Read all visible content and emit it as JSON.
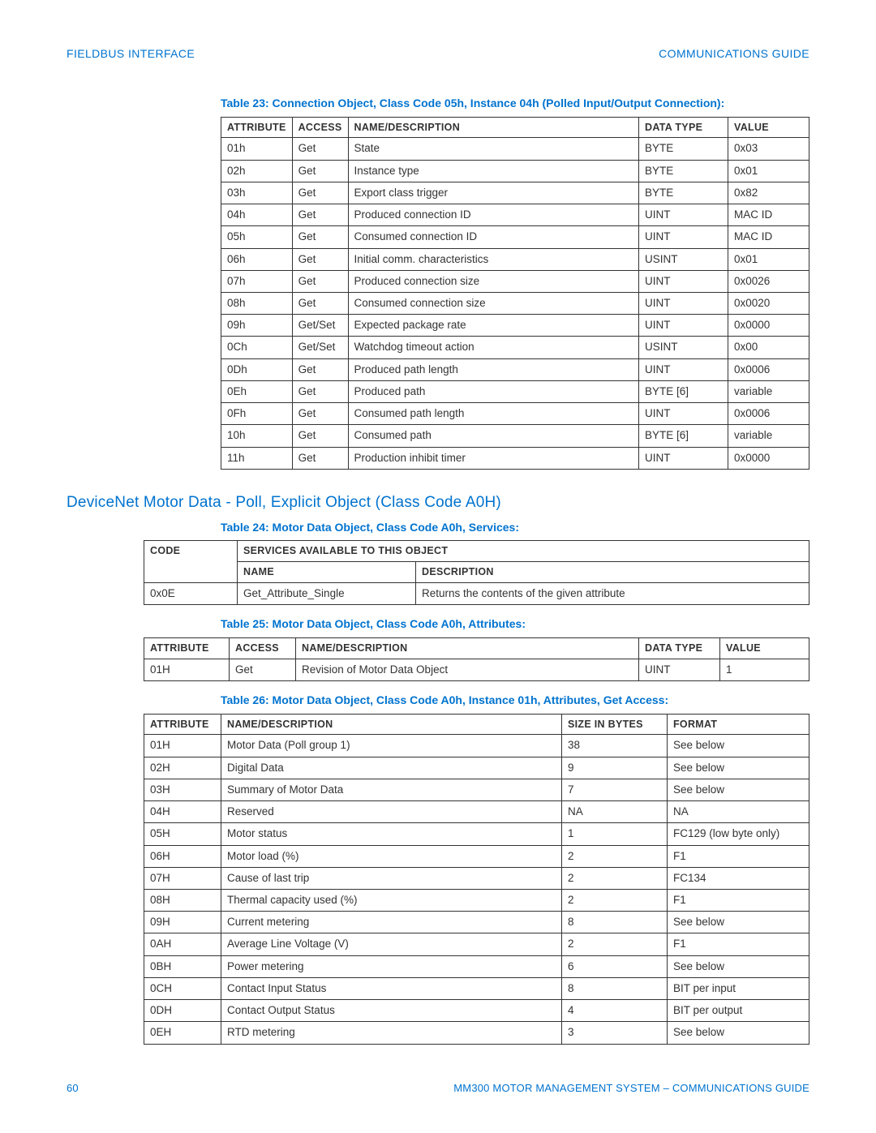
{
  "header": {
    "left": "FIELDBUS INTERFACE",
    "right": "COMMUNICATIONS GUIDE"
  },
  "page_number": "60",
  "footer_text": "MM300 MOTOR MANAGEMENT SYSTEM – COMMUNICATIONS GUIDE",
  "section_title": "DeviceNet Motor Data - Poll, Explicit Object (Class Code A0H)",
  "table23": {
    "caption": "Table 23: Connection Object, Class Code 05h, Instance 04h (Polled Input/Output Con­nection):",
    "columns": [
      "Attribute",
      "Access",
      "Name/Description",
      "Data Type",
      "Value"
    ],
    "rows": [
      [
        "01h",
        "Get",
        "State",
        "BYTE",
        "0x03"
      ],
      [
        "02h",
        "Get",
        "Instance type",
        "BYTE",
        "0x01"
      ],
      [
        "03h",
        "Get",
        "Export class trigger",
        "BYTE",
        "0x82"
      ],
      [
        "04h",
        "Get",
        "Produced connection ID",
        "UINT",
        "MAC ID"
      ],
      [
        "05h",
        "Get",
        "Consumed connection ID",
        "UINT",
        "MAC ID"
      ],
      [
        "06h",
        "Get",
        "Initial comm. characteristics",
        "USINT",
        "0x01"
      ],
      [
        "07h",
        "Get",
        "Produced connection size",
        "UINT",
        "0x0026"
      ],
      [
        "08h",
        "Get",
        "Consumed connection size",
        "UINT",
        "0x0020"
      ],
      [
        "09h",
        "Get/Set",
        "Expected package rate",
        "UINT",
        "0x0000"
      ],
      [
        "0Ch",
        "Get/Set",
        "Watchdog timeout action",
        "USINT",
        "0x00"
      ],
      [
        "0Dh",
        "Get",
        "Produced path length",
        "UINT",
        "0x0006"
      ],
      [
        "0Eh",
        "Get",
        "Produced path",
        "BYTE [6]",
        "variable"
      ],
      [
        "0Fh",
        "Get",
        "Consumed path length",
        "UINT",
        "0x0006"
      ],
      [
        "10h",
        "Get",
        "Consumed path",
        "BYTE [6]",
        "variable"
      ],
      [
        "11h",
        "Get",
        "Production inhibit timer",
        "UINT",
        "0x0000"
      ]
    ],
    "col_widths": [
      "80px",
      "62px",
      "auto",
      "110px",
      "100px"
    ]
  },
  "table24": {
    "caption": "Table 24: Motor Data Object, Class Code A0h, Services:",
    "header_code": "Code",
    "header_services": "Services Available to this Object",
    "header_name": "Name",
    "header_desc": "Description",
    "rows": [
      [
        "0x0E",
        "Get_Attribute_Single",
        "Returns the contents of the given attribute"
      ]
    ]
  },
  "table25": {
    "caption": "Table 25: Motor Data Object, Class Code A0h, Attributes:",
    "columns": [
      "Attribute",
      "Access",
      "Name/Description",
      "Data Type",
      "Value"
    ],
    "rows": [
      [
        "01H",
        "Get",
        "Revision of Motor Data Object",
        "UINT",
        "1"
      ]
    ],
    "col_widths": [
      "105px",
      "82px",
      "auto",
      "100px",
      "110px"
    ]
  },
  "table26": {
    "caption": "Table 26: Motor Data Object, Class Code A0h, Instance 01h, Attributes, Get Access:",
    "columns": [
      "Attribute",
      "Name/Description",
      "Size in Bytes",
      "Format"
    ],
    "rows": [
      [
        "01H",
        "Motor Data (Poll group 1)",
        "38",
        "See below"
      ],
      [
        "02H",
        "Digital Data",
        "9",
        "See below"
      ],
      [
        "03H",
        "Summary of Motor Data",
        "7",
        "See below"
      ],
      [
        "04H",
        "Reserved",
        "NA",
        "NA"
      ],
      [
        "05H",
        "Motor status",
        "1",
        "FC129 (low byte only)"
      ],
      [
        "06H",
        "Motor load (%)",
        "2",
        "F1"
      ],
      [
        "07H",
        "Cause of last trip",
        "2",
        "FC134"
      ],
      [
        "08H",
        "Thermal capacity used (%)",
        "2",
        "F1"
      ],
      [
        "09H",
        "Current metering",
        "8",
        "See below"
      ],
      [
        "0AH",
        "Average Line Voltage (V)",
        "2",
        "F1"
      ],
      [
        "0BH",
        "Power metering",
        "6",
        "See below"
      ],
      [
        "0CH",
        "Contact Input Status",
        "8",
        "BIT per input"
      ],
      [
        "0DH",
        "Contact Output Status",
        "4",
        "BIT per output"
      ],
      [
        "0EH",
        "RTD metering",
        "3",
        "See below"
      ]
    ],
    "col_widths": [
      "95px",
      "auto",
      "130px",
      "175px"
    ]
  }
}
